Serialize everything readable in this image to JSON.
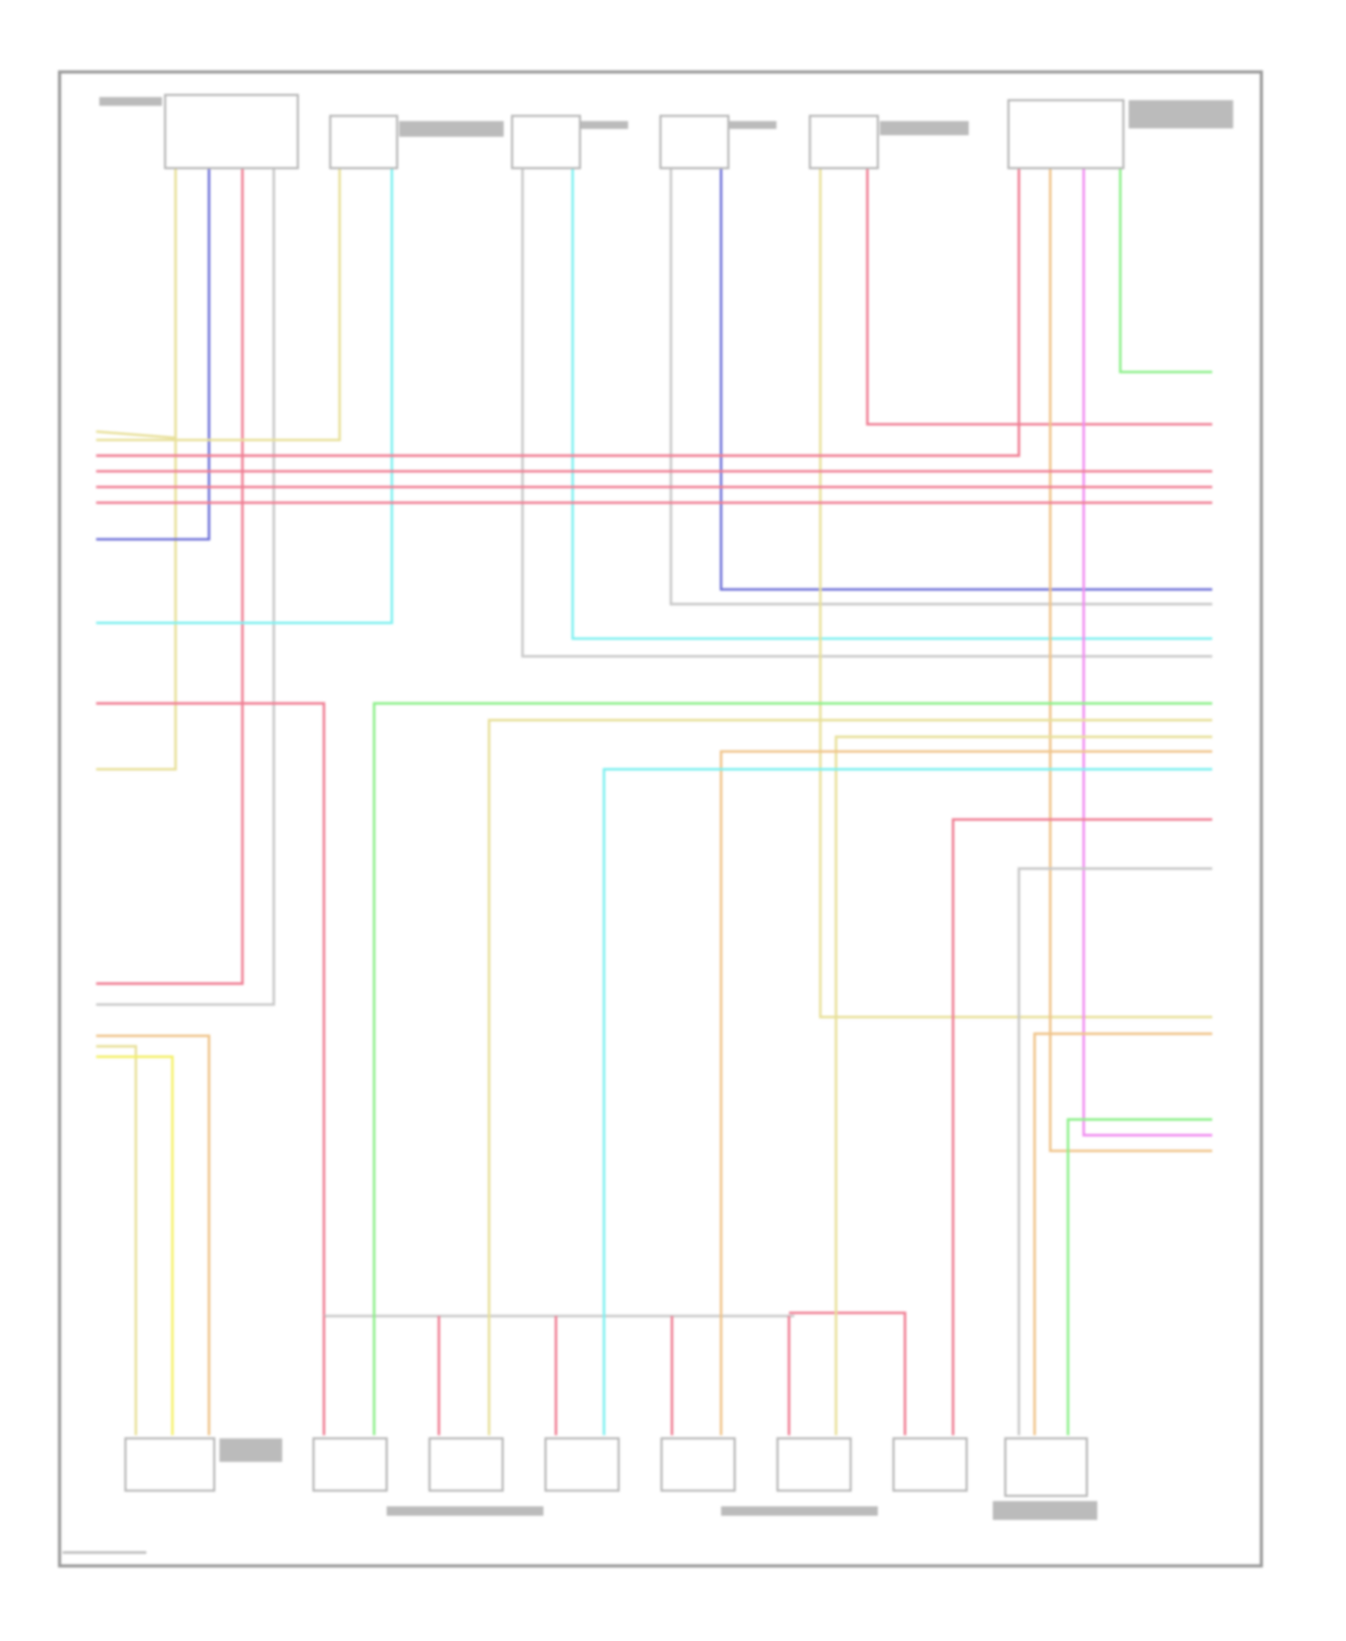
{
  "diagram": {
    "wire_colors": {
      "yellow": "#e8e09a",
      "blue": "#6f72d8",
      "red": "#ef7e93",
      "gray": "#c8c8c8",
      "cyan": "#7ff0f0",
      "green": "#8df08a",
      "orange": "#f0c48a",
      "magenta": "#f08cf0",
      "bright_yellow": "#f4f06a"
    },
    "components": [
      {
        "id": "top-connector-1",
        "pins": 4
      },
      {
        "id": "top-connector-2",
        "pins": 2
      },
      {
        "id": "top-sensor-3",
        "pins": 2
      },
      {
        "id": "top-sensor-4",
        "pins": 2
      },
      {
        "id": "top-connector-5",
        "pins": 2
      },
      {
        "id": "top-connector-6",
        "pins": 4
      },
      {
        "id": "bottom-left-sensor",
        "pins": 3
      },
      {
        "id": "fuel-injectors",
        "count": 6
      },
      {
        "id": "bottom-right-sensor",
        "pins": 3
      }
    ]
  }
}
